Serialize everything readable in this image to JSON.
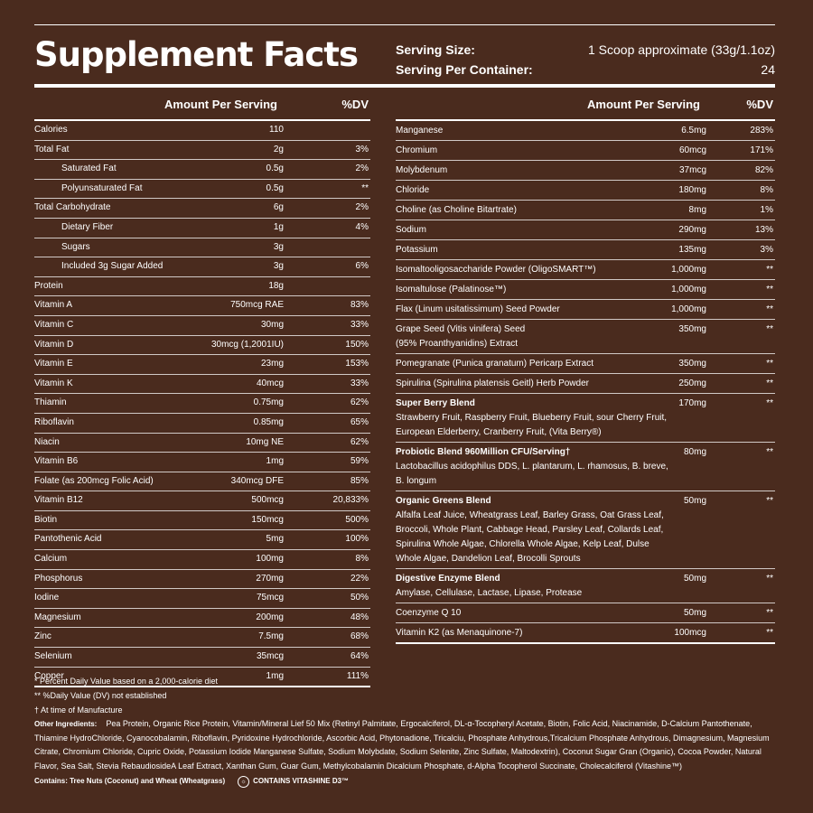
{
  "title": "Supplement Facts",
  "serving": {
    "size_label": "Serving Size:",
    "size_value": "1 Scoop approximate (33g/1.1oz)",
    "per_container_label": "Serving Per Container:",
    "per_container_value": "24"
  },
  "headers": {
    "amount": "Amount Per Serving",
    "dv": "%DV"
  },
  "left_rows": [
    {
      "name": "Calories",
      "amount": "110",
      "dv": "",
      "indent": false
    },
    {
      "name": "Total Fat",
      "amount": "2g",
      "dv": "3%",
      "indent": false
    },
    {
      "name": "Saturated Fat",
      "amount": "0.5g",
      "dv": "2%",
      "indent": true
    },
    {
      "name": "Polyunsaturated Fat",
      "amount": "0.5g",
      "dv": "**",
      "indent": true
    },
    {
      "name": "Total Carbohydrate",
      "amount": "6g",
      "dv": "2%",
      "indent": false
    },
    {
      "name": "Dietary Fiber",
      "amount": "1g",
      "dv": "4%",
      "indent": true
    },
    {
      "name": "Sugars",
      "amount": "3g",
      "dv": "",
      "indent": true
    },
    {
      "name": "Included 3g Sugar Added",
      "amount": "3g",
      "dv": "6%",
      "indent": true
    },
    {
      "name": "Protein",
      "amount": "18g",
      "dv": "",
      "indent": false
    },
    {
      "name": "Vitamin A",
      "amount": "750mcg RAE",
      "dv": "83%",
      "indent": false
    },
    {
      "name": "Vitamin C",
      "amount": "30mg",
      "dv": "33%",
      "indent": false
    },
    {
      "name": "Vitamin D",
      "amount": "30mcg (1,2001IU)",
      "dv": "150%",
      "indent": false
    },
    {
      "name": "Vitamin E",
      "amount": "23mg",
      "dv": "153%",
      "indent": false
    },
    {
      "name": "Vitamin K",
      "amount": "40mcg",
      "dv": "33%",
      "indent": false
    },
    {
      "name": "Thiamin",
      "amount": "0.75mg",
      "dv": "62%",
      "indent": false
    },
    {
      "name": "Riboflavin",
      "amount": "0.85mg",
      "dv": "65%",
      "indent": false
    },
    {
      "name": "Niacin",
      "amount": "10mg NE",
      "dv": "62%",
      "indent": false
    },
    {
      "name": "Vitamin B6",
      "amount": "1mg",
      "dv": "59%",
      "indent": false
    },
    {
      "name": "Folate (as 200mcg Folic Acid)",
      "amount": "340mcg DFE",
      "dv": "85%",
      "indent": false
    },
    {
      "name": "Vitamin B12",
      "amount": "500mcg",
      "dv": "20,833%",
      "indent": false
    },
    {
      "name": "Biotin",
      "amount": "150mcg",
      "dv": "500%",
      "indent": false
    },
    {
      "name": "Pantothenic Acid",
      "amount": "5mg",
      "dv": "100%",
      "indent": false
    },
    {
      "name": "Calcium",
      "amount": "100mg",
      "dv": "8%",
      "indent": false
    },
    {
      "name": "Phosphorus",
      "amount": "270mg",
      "dv": "22%",
      "indent": false
    },
    {
      "name": "Iodine",
      "amount": "75mcg",
      "dv": "50%",
      "indent": false
    },
    {
      "name": "Magnesium",
      "amount": "200mg",
      "dv": "48%",
      "indent": false
    },
    {
      "name": "Zinc",
      "amount": "7.5mg",
      "dv": "68%",
      "indent": false
    },
    {
      "name": "Selenium",
      "amount": "35mcg",
      "dv": "64%",
      "indent": false
    },
    {
      "name": "Copper",
      "amount": "1mg",
      "dv": "111%",
      "indent": false
    }
  ],
  "right_rows": [
    {
      "name": "Manganese",
      "amount": "6.5mg",
      "dv": "283%",
      "bold": false,
      "sub": ""
    },
    {
      "name": "Chromium",
      "amount": "60mcg",
      "dv": "171%",
      "bold": false,
      "sub": ""
    },
    {
      "name": "Molybdenum",
      "amount": "37mcg",
      "dv": "82%",
      "bold": false,
      "sub": ""
    },
    {
      "name": "Chloride",
      "amount": "180mg",
      "dv": "8%",
      "bold": false,
      "sub": ""
    },
    {
      "name": "Choline (as Choline Bitartrate)",
      "amount": "8mg",
      "dv": "1%",
      "bold": false,
      "sub": ""
    },
    {
      "name": "Sodium",
      "amount": "290mg",
      "dv": "13%",
      "bold": false,
      "sub": ""
    },
    {
      "name": "Potassium",
      "amount": "135mg",
      "dv": "3%",
      "bold": false,
      "sub": ""
    },
    {
      "name": "Isomaltooligosaccharide Powder (OligoSMART™)",
      "amount": "1,000mg",
      "dv": "**",
      "bold": false,
      "sub": ""
    },
    {
      "name": "Isomaltulose (Palatinose™)",
      "amount": "1,000mg",
      "dv": "**",
      "bold": false,
      "sub": ""
    },
    {
      "name": "Flax (Linum usitatissimum) Seed Powder",
      "amount": "1,000mg",
      "dv": "**",
      "bold": false,
      "sub": ""
    },
    {
      "name": "Grape Seed (Vitis vinifera) Seed",
      "amount": "350mg",
      "dv": "**",
      "bold": false,
      "sub": "(95% Proanthyanidins) Extract"
    },
    {
      "name": "Pomegranate (Punica granatum) Pericarp Extract",
      "amount": "350mg",
      "dv": "**",
      "bold": false,
      "sub": ""
    },
    {
      "name": "Spirulina (Spirulina platensis Geitl) Herb Powder",
      "amount": "250mg",
      "dv": "**",
      "bold": false,
      "sub": ""
    },
    {
      "name": "Super Berry Blend",
      "amount": "170mg",
      "dv": "**",
      "bold": true,
      "sub": "Strawberry Fruit, Raspberry Fruit, Blueberry Fruit, sour Cherry Fruit, European Elderberry, Cranberry Fruit, (Vita Berry®)"
    },
    {
      "name": "Probiotic Blend 960Million CFU/Serving†",
      "amount": "80mg",
      "dv": "**",
      "bold": true,
      "sub": "Lactobacillus acidophilus DDS, L. plantarum, L. rhamosus, B. breve, B. longum"
    },
    {
      "name": "Organic Greens Blend",
      "amount": "50mg",
      "dv": "**",
      "bold": true,
      "sub": "Alfalfa Leaf Juice, Wheatgrass Leaf, Barley Grass, Oat Grass Leaf, Broccoli, Whole Plant, Cabbage Head, Parsley Leaf, Collards Leaf, Spirulina Whole Algae, Chlorella Whole Algae, Kelp Leaf, Dulse Whole Algae, Dandelion Leaf, Brocolli Sprouts"
    },
    {
      "name": "Digestive Enzyme Blend",
      "amount": "50mg",
      "dv": "**",
      "bold": true,
      "sub": "Amylase, Cellulase, Lactase, Lipase, Protease"
    },
    {
      "name": "Coenzyme Q 10",
      "amount": "50mg",
      "dv": "**",
      "bold": false,
      "sub": ""
    },
    {
      "name": "Vitamin K2 (as Menaquinone-7)",
      "amount": "100mcg",
      "dv": "**",
      "bold": false,
      "sub": ""
    }
  ],
  "footnotes": {
    "note1": "* Percent Daily Value based on a 2,000-calorie diet",
    "note2": "** %Daily Value (DV) not established",
    "note3": "† At time of Manufacture",
    "ingredients_label": "Other Ingredients:",
    "ingredients_text": "Pea Protein, Organic Rice Protein, Vitamin/Mineral Lief 50 Mix (Retinyl Palmitate, Ergocalciferol, DL-α-Tocopheryl Acetate, Biotin, Folic Acid, Niacinamide, D-Calcium Pantothenate, Thiamine HydroChloride, Cyanocobalamin, Riboflavin, Pyridoxine Hydrochloride, Ascorbic Acid, Phytonadione, Tricalciu, Phosphate Anhydrous,Tricalcium Phosphate Anhydrous, Dimagnesium, Magnesium Citrate, Chromium Chloride, Cupric Oxide, Potassium Iodide Manganese Sulfate, Sodium Molybdate, Sodium Selenite, Zinc Sulfate, Maltodextrin), Coconut Sugar Gran (Organic), Cocoa Powder, Natural Flavor, Sea Salt, Stevia RebaudiosideA Leaf Extract, Xanthan Gum, Guar Gum, Methylcobalamin Dicalcium Phosphate, d-Alpha Tocopherol Succinate, Cholecalciferol (Vitashine™)",
    "contains": "Contains: Tree Nuts (Coconut) and Wheat (Wheatgrass)",
    "badge": "CONTAINS VITASHINE D3™"
  }
}
